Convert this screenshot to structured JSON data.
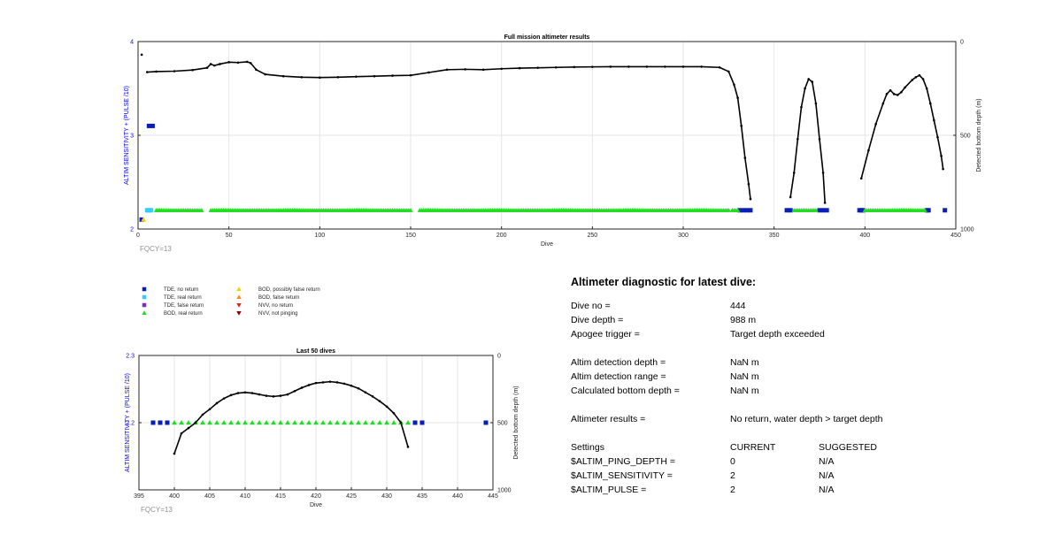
{
  "chart_data": [
    {
      "type": "line",
      "title": "Full mission altimeter results",
      "xlabel": "Dive",
      "ylabel_left": "ALTIM SENSITIVITY + (PULSE /10)",
      "ylabel_right": "Detected bottom depth (m)",
      "xlim": [
        0,
        450
      ],
      "xticks": [
        0,
        50,
        100,
        150,
        200,
        250,
        300,
        350,
        400,
        450
      ],
      "ylim_left": [
        2,
        4
      ],
      "yticks_left": [
        2,
        3,
        4
      ],
      "ylim_right": [
        0,
        1000
      ],
      "yticks_right": [
        0,
        500,
        1000
      ],
      "right_axis_reversed": true,
      "grid": true,
      "footnote": "FQCY=13",
      "series": [
        {
          "name": "Detected bottom depth",
          "axis": "right",
          "color": "#000000",
          "segments": [
            [
              [
                2,
                70
              ]
            ],
            [
              [
                5,
                163
              ],
              [
                10,
                160
              ],
              [
                20,
                158
              ],
              [
                30,
                152
              ],
              [
                38,
                140
              ],
              [
                40,
                120
              ],
              [
                42,
                128
              ],
              [
                45,
                120
              ],
              [
                50,
                110
              ],
              [
                55,
                112
              ],
              [
                60,
                108
              ],
              [
                62,
                115
              ],
              [
                65,
                150
              ],
              [
                70,
                175
              ],
              [
                80,
                185
              ],
              [
                90,
                190
              ],
              [
                100,
                192
              ],
              [
                110,
                190
              ],
              [
                120,
                187
              ],
              [
                130,
                185
              ],
              [
                140,
                182
              ],
              [
                150,
                180
              ],
              [
                160,
                165
              ],
              [
                170,
                150
              ],
              [
                180,
                148
              ],
              [
                190,
                150
              ],
              [
                200,
                145
              ],
              [
                210,
                142
              ],
              [
                220,
                140
              ],
              [
                230,
                138
              ],
              [
                240,
                136
              ],
              [
                250,
                135
              ],
              [
                260,
                134
              ],
              [
                270,
                134
              ],
              [
                280,
                134
              ],
              [
                290,
                134
              ],
              [
                300,
                134
              ],
              [
                310,
                134
              ],
              [
                320,
                138
              ],
              [
                325,
                160
              ],
              [
                328,
                230
              ],
              [
                330,
                300
              ],
              [
                332,
                450
              ],
              [
                334,
                620
              ],
              [
                336,
                760
              ],
              [
                337,
                840
              ]
            ],
            [
              [
                359,
                830
              ],
              [
                361,
                700
              ],
              [
                363,
                520
              ],
              [
                365,
                350
              ],
              [
                367,
                250
              ],
              [
                369,
                200
              ],
              [
                371,
                215
              ],
              [
                373,
                330
              ],
              [
                375,
                520
              ],
              [
                377,
                700
              ],
              [
                378,
                860
              ]
            ],
            [
              [
                398,
                730
              ],
              [
                402,
                580
              ],
              [
                406,
                440
              ],
              [
                410,
                330
              ],
              [
                412,
                280
              ],
              [
                414,
                260
              ],
              [
                416,
                280
              ],
              [
                418,
                285
              ],
              [
                420,
                270
              ],
              [
                422,
                245
              ],
              [
                426,
                205
              ],
              [
                428,
                190
              ],
              [
                430,
                180
              ],
              [
                432,
                200
              ],
              [
                434,
                250
              ],
              [
                436,
                330
              ],
              [
                438,
                420
              ],
              [
                440,
                510
              ],
              [
                442,
                610
              ],
              [
                443,
                680
              ]
            ]
          ]
        },
        {
          "name": "TDE, no return",
          "axis": "left",
          "color": "#0a1fb8",
          "points": [
            [
              2,
              2.1
            ],
            [
              6,
              3.1
            ],
            [
              8,
              3.1
            ],
            [
              331,
              2.2
            ],
            [
              333,
              2.2
            ],
            [
              335,
              2.2
            ],
            [
              337,
              2.2
            ],
            [
              357,
              2.2
            ],
            [
              359,
              2.2
            ],
            [
              375,
              2.2
            ],
            [
              377,
              2.2
            ],
            [
              379,
              2.2
            ],
            [
              397,
              2.2
            ],
            [
              398,
              2.2
            ],
            [
              399,
              2.2
            ],
            [
              434,
              2.2
            ],
            [
              435,
              2.2
            ],
            [
              444,
              2.2
            ]
          ]
        },
        {
          "name": "TDE, real return",
          "axis": "left",
          "color": "#33ccff",
          "points": [
            [
              5,
              2.2
            ],
            [
              6,
              2.2
            ],
            [
              7,
              2.2
            ]
          ]
        },
        {
          "name": "BOD, real return",
          "axis": "left",
          "color": "#22dd22",
          "value": 2.2,
          "ranges": [
            [
              10,
              35
            ],
            [
              40,
              150
            ],
            [
              155,
              325
            ],
            [
              327,
              330
            ],
            [
              361,
              373
            ],
            [
              400,
              433
            ]
          ]
        },
        {
          "name": "BOD, possibly false return",
          "axis": "left",
          "color": "#f2d200",
          "points": [
            [
              3,
              2.1
            ]
          ]
        }
      ]
    },
    {
      "type": "line",
      "title": "Last 50 dives",
      "xlabel": "Dive",
      "ylabel_left": "ALTIM SENSITIVITY + (PULSE /10)",
      "ylabel_right": "Detected bottom depth (m)",
      "xlim": [
        395,
        445
      ],
      "xticks": [
        395,
        400,
        405,
        410,
        415,
        420,
        425,
        430,
        435,
        440,
        445
      ],
      "ylim_left": [
        2.1,
        2.3
      ],
      "yticks_left": [
        "",
        "2.2",
        "2.3"
      ],
      "ylim_right": [
        0,
        1000
      ],
      "yticks_right": [
        0,
        500,
        1000
      ],
      "right_axis_reversed": true,
      "grid": true,
      "footnote": "FQCY=13",
      "series": [
        {
          "name": "Detected bottom depth",
          "axis": "right",
          "color": "#000000",
          "points": [
            [
              400,
              730
            ],
            [
              401,
              580
            ],
            [
              402,
              540
            ],
            [
              403,
              500
            ],
            [
              404,
              440
            ],
            [
              405,
              400
            ],
            [
              406,
              355
            ],
            [
              407,
              320
            ],
            [
              408,
              295
            ],
            [
              409,
              280
            ],
            [
              410,
              275
            ],
            [
              411,
              280
            ],
            [
              412,
              290
            ],
            [
              413,
              300
            ],
            [
              414,
              305
            ],
            [
              415,
              300
            ],
            [
              416,
              290
            ],
            [
              417,
              265
            ],
            [
              418,
              240
            ],
            [
              419,
              220
            ],
            [
              420,
              205
            ],
            [
              421,
              200
            ],
            [
              422,
              195
            ],
            [
              423,
              200
            ],
            [
              424,
              210
            ],
            [
              425,
              225
            ],
            [
              426,
              245
            ],
            [
              427,
              275
            ],
            [
              428,
              305
            ],
            [
              429,
              340
            ],
            [
              430,
              380
            ],
            [
              431,
              430
            ],
            [
              432,
              500
            ],
            [
              433,
              680
            ]
          ]
        },
        {
          "name": "TDE, no return",
          "axis": "left",
          "color": "#0a1fb8",
          "points": [
            [
              397,
              2.2
            ],
            [
              398,
              2.2
            ],
            [
              399,
              2.2
            ],
            [
              434,
              2.2
            ],
            [
              435,
              2.2
            ],
            [
              444,
              2.2
            ]
          ]
        },
        {
          "name": "BOD, real return",
          "axis": "left",
          "color": "#22dd22",
          "points": [
            [
              400,
              2.2
            ],
            [
              401,
              2.2
            ],
            [
              402,
              2.2
            ],
            [
              403,
              2.2
            ],
            [
              404,
              2.2
            ],
            [
              405,
              2.2
            ],
            [
              406,
              2.2
            ],
            [
              407,
              2.2
            ],
            [
              408,
              2.2
            ],
            [
              409,
              2.2
            ],
            [
              410,
              2.2
            ],
            [
              411,
              2.2
            ],
            [
              412,
              2.2
            ],
            [
              413,
              2.2
            ],
            [
              414,
              2.2
            ],
            [
              415,
              2.2
            ],
            [
              416,
              2.2
            ],
            [
              417,
              2.2
            ],
            [
              418,
              2.2
            ],
            [
              419,
              2.2
            ],
            [
              420,
              2.2
            ],
            [
              421,
              2.2
            ],
            [
              422,
              2.2
            ],
            [
              423,
              2.2
            ],
            [
              424,
              2.2
            ],
            [
              425,
              2.2
            ],
            [
              426,
              2.2
            ],
            [
              427,
              2.2
            ],
            [
              428,
              2.2
            ],
            [
              429,
              2.2
            ],
            [
              430,
              2.2
            ],
            [
              431,
              2.2
            ],
            [
              432,
              2.2
            ],
            [
              433,
              2.2
            ]
          ]
        }
      ]
    }
  ],
  "legend": {
    "items": [
      {
        "label": "TDE, no return",
        "marker": "square",
        "color": "#0a1fb8"
      },
      {
        "label": "TDE, real return",
        "marker": "square",
        "color": "#33ccff"
      },
      {
        "label": "TDE, false return",
        "marker": "square",
        "color": "#7b2fbf"
      },
      {
        "label": "BOD, real return",
        "marker": "triangle-up",
        "color": "#22dd22"
      },
      {
        "label": "BOD, possibly false return",
        "marker": "triangle-up",
        "color": "#f2d200"
      },
      {
        "label": "BOD, false return",
        "marker": "triangle-up",
        "color": "#ff8c1a"
      },
      {
        "label": "NVV, no return",
        "marker": "triangle-down",
        "color": "#e02020"
      },
      {
        "label": "NVV, not pinging",
        "marker": "triangle-down",
        "color": "#8b0000"
      }
    ]
  },
  "diagnostic": {
    "title": "Altimeter diagnostic for latest dive:",
    "dive_no_label": "Dive no =",
    "dive_no_value": "444",
    "dive_depth_label": "Dive depth =",
    "dive_depth_value": "988 m",
    "apogee_label": "Apogee trigger =",
    "apogee_value": "Target depth exceeded",
    "det_depth_label": "Altim detection depth =",
    "det_depth_value": "NaN m",
    "det_range_label": "Altim detection range =",
    "det_range_value": "NaN m",
    "calc_label": "Calculated bottom depth =",
    "calc_value": "NaN m",
    "results_label": "Altimeter results =",
    "results_value": "No return, water depth > target depth",
    "settings_label": "Settings",
    "current_label": "CURRENT",
    "suggested_label": "SUGGESTED",
    "ping_label": "$ALTIM_PING_DEPTH =",
    "ping_current": "0",
    "ping_suggested": "N/A",
    "sens_label": "$ALTIM_SENSITIVITY =",
    "sens_current": "2",
    "sens_suggested": "N/A",
    "pulse_label": "$ALTIM_PULSE =",
    "pulse_current": "2",
    "pulse_suggested": "N/A"
  }
}
